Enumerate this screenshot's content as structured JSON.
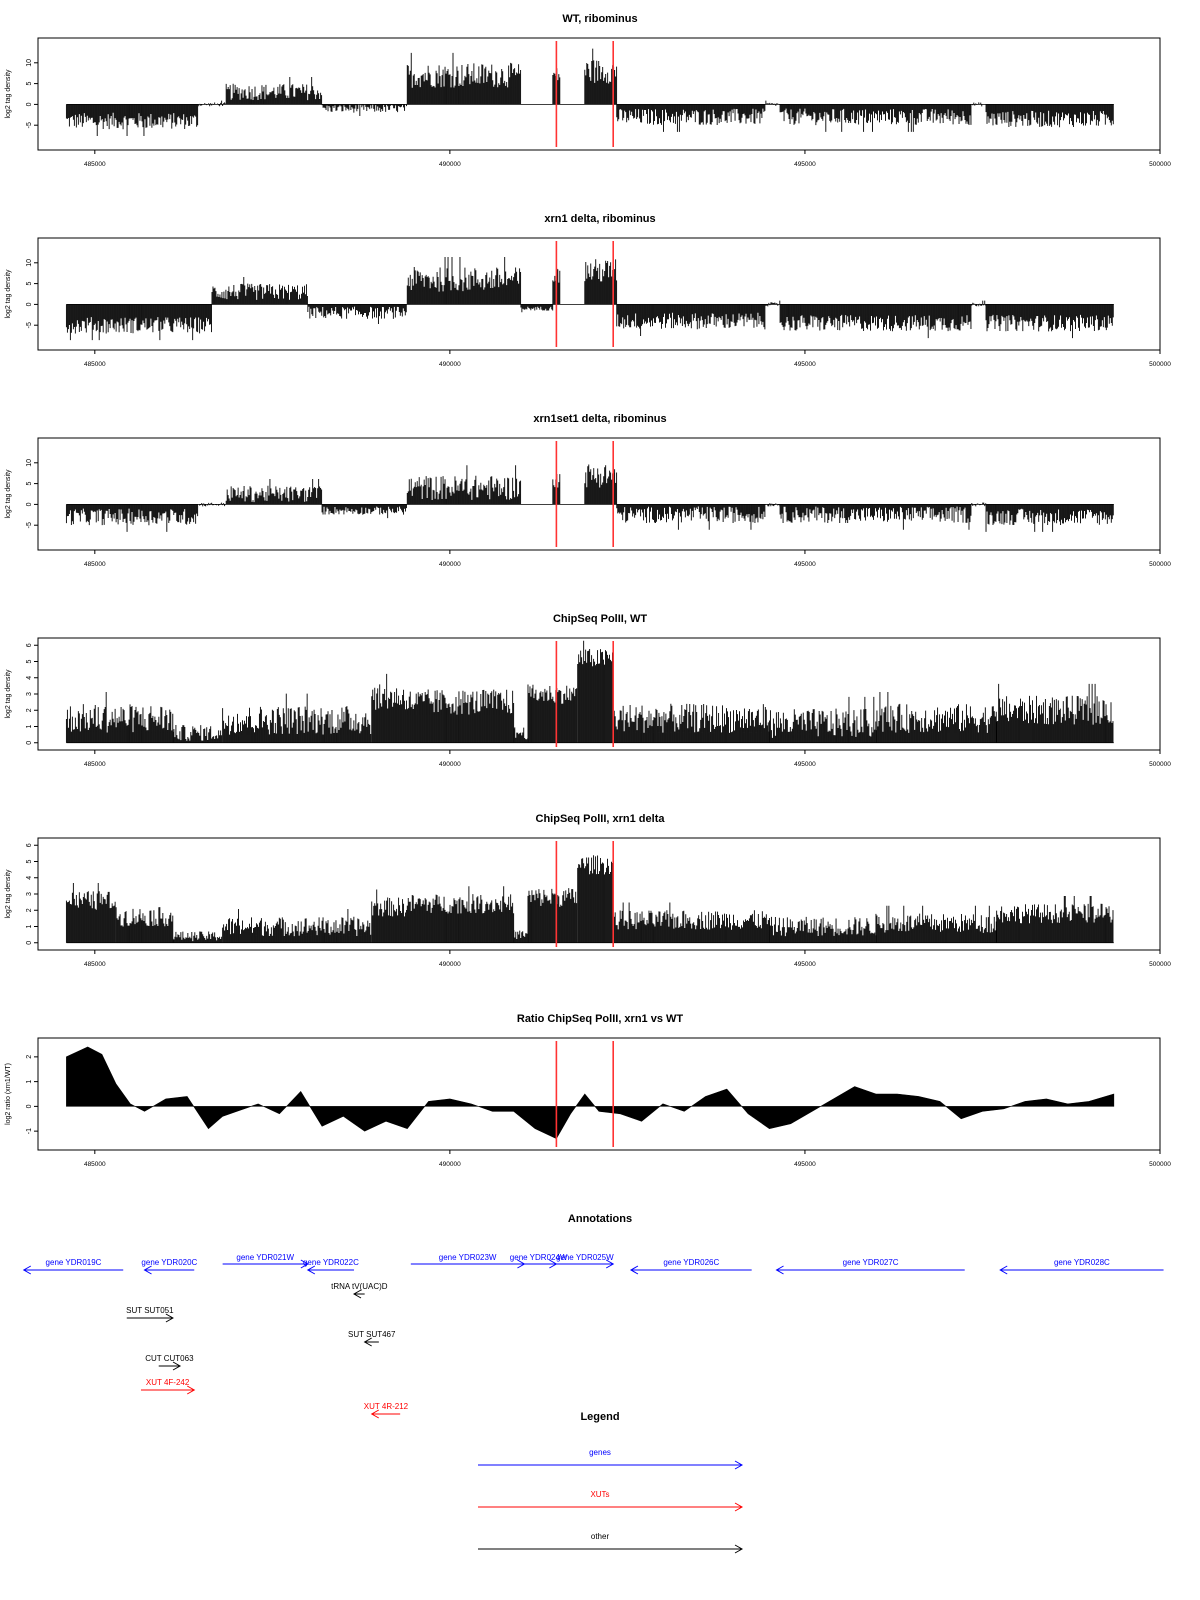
{
  "chart_data": [
    {
      "type": "bar",
      "title": "WT, ribominus",
      "ylabel": "log2 tag density",
      "ylim": [
        -10,
        15
      ],
      "yticks": [
        "-5",
        "0",
        "5",
        "10"
      ],
      "xlim": [
        484200,
        500000
      ],
      "xticks": [
        "485000",
        "490000",
        "495000",
        "500000"
      ],
      "markers": [
        491500,
        492300
      ],
      "segments": [
        {
          "x": [
            484600,
            486450
          ],
          "v": -4,
          "j": 2
        },
        {
          "x": [
            486450,
            486850
          ],
          "v": 0,
          "j": 0.5
        },
        {
          "x": [
            486850,
            488200
          ],
          "v": 3,
          "j": 2
        },
        {
          "x": [
            488200,
            489400
          ],
          "v": -1,
          "j": 1
        },
        {
          "x": [
            489400,
            491000
          ],
          "v": 7,
          "j": 3
        },
        {
          "x": [
            491000,
            491450
          ],
          "v": 0,
          "j": 0
        },
        {
          "x": [
            491450,
            491550
          ],
          "v": 7,
          "j": 2
        },
        {
          "x": [
            491900,
            492350
          ],
          "v": 8,
          "j": 3
        },
        {
          "x": [
            492350,
            494450
          ],
          "v": -3,
          "j": 2
        },
        {
          "x": [
            494450,
            494650
          ],
          "v": 0,
          "j": 0.5
        },
        {
          "x": [
            494650,
            497350
          ],
          "v": -3,
          "j": 2
        },
        {
          "x": [
            497350,
            497550
          ],
          "v": 0,
          "j": 0.5
        },
        {
          "x": [
            497550,
            499350
          ],
          "v": -3.5,
          "j": 2
        }
      ]
    },
    {
      "type": "bar",
      "title": "xrn1 delta, ribominus",
      "ylabel": "log2 tag density",
      "ylim": [
        -10,
        15
      ],
      "yticks": [
        "-5",
        "0",
        "5",
        "10"
      ],
      "xlim": [
        484200,
        500000
      ],
      "xticks": [
        "485000",
        "490000",
        "495000",
        "500000"
      ],
      "markers": [
        491500,
        492300
      ],
      "segments": [
        {
          "x": [
            484600,
            486650
          ],
          "v": -5,
          "j": 2
        },
        {
          "x": [
            486650,
            488000
          ],
          "v": 3,
          "j": 2
        },
        {
          "x": [
            488000,
            489400
          ],
          "v": -2,
          "j": 1.5
        },
        {
          "x": [
            489400,
            491000
          ],
          "v": 6,
          "j": 3
        },
        {
          "x": [
            491000,
            491450
          ],
          "v": -1,
          "j": 0.5
        },
        {
          "x": [
            491450,
            491550
          ],
          "v": 7,
          "j": 2
        },
        {
          "x": [
            491900,
            492350
          ],
          "v": 8,
          "j": 3
        },
        {
          "x": [
            492350,
            494450
          ],
          "v": -4,
          "j": 2
        },
        {
          "x": [
            494450,
            494650
          ],
          "v": 0,
          "j": 0.5
        },
        {
          "x": [
            494650,
            497350
          ],
          "v": -4.5,
          "j": 2
        },
        {
          "x": [
            497350,
            497550
          ],
          "v": 0,
          "j": 0.5
        },
        {
          "x": [
            497550,
            499350
          ],
          "v": -4.5,
          "j": 2
        }
      ]
    },
    {
      "type": "bar",
      "title": "xrn1set1 delta, ribominus",
      "ylabel": "log2 tag density",
      "ylim": [
        -10,
        15
      ],
      "yticks": [
        "-5",
        "0",
        "5",
        "10"
      ],
      "xlim": [
        484200,
        500000
      ],
      "xticks": [
        "485000",
        "490000",
        "495000",
        "500000"
      ],
      "markers": [
        491500,
        492300
      ],
      "segments": [
        {
          "x": [
            484600,
            486450
          ],
          "v": -3,
          "j": 2
        },
        {
          "x": [
            486450,
            486850
          ],
          "v": 0,
          "j": 0.5
        },
        {
          "x": [
            486850,
            488200
          ],
          "v": 2.5,
          "j": 2
        },
        {
          "x": [
            488200,
            489400
          ],
          "v": -1.5,
          "j": 1
        },
        {
          "x": [
            489400,
            491000
          ],
          "v": 4,
          "j": 3
        },
        {
          "x": [
            491000,
            491450
          ],
          "v": 0,
          "j": 0
        },
        {
          "x": [
            491450,
            491550
          ],
          "v": 6,
          "j": 2
        },
        {
          "x": [
            491900,
            492350
          ],
          "v": 7,
          "j": 3
        },
        {
          "x": [
            492350,
            494450
          ],
          "v": -2.5,
          "j": 2
        },
        {
          "x": [
            494450,
            494650
          ],
          "v": 0,
          "j": 0.5
        },
        {
          "x": [
            494650,
            497350
          ],
          "v": -2.5,
          "j": 2
        },
        {
          "x": [
            497350,
            497550
          ],
          "v": 0,
          "j": 0.5
        },
        {
          "x": [
            497550,
            499350
          ],
          "v": -3,
          "j": 2
        }
      ]
    },
    {
      "type": "bar",
      "title": "ChipSeq PolII, WT",
      "ylabel": "log2 tag density",
      "ylim": [
        -0.2,
        6.2
      ],
      "yticks": [
        "0",
        "1",
        "2",
        "3",
        "4",
        "5",
        "6"
      ],
      "xlim": [
        484200,
        500000
      ],
      "xticks": [
        "485000",
        "490000",
        "495000",
        "500000"
      ],
      "markers": [
        491500,
        492300
      ],
      "segments": [
        {
          "x": [
            484600,
            486100
          ],
          "v": 1.5,
          "j": 0.9
        },
        {
          "x": [
            486100,
            486800
          ],
          "v": 0.6,
          "j": 0.5
        },
        {
          "x": [
            486800,
            488900
          ],
          "v": 1.4,
          "j": 0.9
        },
        {
          "x": [
            488900,
            489400
          ],
          "v": 2.8,
          "j": 0.8
        },
        {
          "x": [
            489400,
            490900
          ],
          "v": 2.5,
          "j": 0.8
        },
        {
          "x": [
            490900,
            491100
          ],
          "v": 0.6,
          "j": 0.4
        },
        {
          "x": [
            491100,
            491800
          ],
          "v": 3.0,
          "j": 0.6
        },
        {
          "x": [
            491800,
            492300
          ],
          "v": 5.2,
          "j": 0.6
        },
        {
          "x": [
            492300,
            494500
          ],
          "v": 1.5,
          "j": 0.9
        },
        {
          "x": [
            494500,
            496000
          ],
          "v": 1.2,
          "j": 0.9
        },
        {
          "x": [
            496000,
            497700
          ],
          "v": 1.5,
          "j": 0.9
        },
        {
          "x": [
            497700,
            499350
          ],
          "v": 2.0,
          "j": 0.9
        }
      ]
    },
    {
      "type": "bar",
      "title": "ChipSeq PolII, xrn1 delta",
      "ylabel": "log2 tag density",
      "ylim": [
        -0.2,
        6.2
      ],
      "yticks": [
        "0",
        "1",
        "2",
        "3",
        "4",
        "5",
        "6"
      ],
      "xlim": [
        484200,
        500000
      ],
      "xticks": [
        "485000",
        "490000",
        "495000",
        "500000"
      ],
      "markers": [
        491500,
        492300
      ],
      "segments": [
        {
          "x": [
            484600,
            485300
          ],
          "v": 2.6,
          "j": 0.6
        },
        {
          "x": [
            485300,
            486100
          ],
          "v": 1.6,
          "j": 0.6
        },
        {
          "x": [
            486100,
            486800
          ],
          "v": 0.4,
          "j": 0.3
        },
        {
          "x": [
            486800,
            488900
          ],
          "v": 1.0,
          "j": 0.6
        },
        {
          "x": [
            488900,
            489400
          ],
          "v": 2.2,
          "j": 0.6
        },
        {
          "x": [
            489400,
            490900
          ],
          "v": 2.4,
          "j": 0.6
        },
        {
          "x": [
            490900,
            491100
          ],
          "v": 0.5,
          "j": 0.3
        },
        {
          "x": [
            491100,
            491800
          ],
          "v": 2.8,
          "j": 0.6
        },
        {
          "x": [
            491800,
            492300
          ],
          "v": 4.8,
          "j": 0.6
        },
        {
          "x": [
            492300,
            494500
          ],
          "v": 1.4,
          "j": 0.6
        },
        {
          "x": [
            494500,
            496000
          ],
          "v": 1.0,
          "j": 0.6
        },
        {
          "x": [
            496000,
            497700
          ],
          "v": 1.2,
          "j": 0.6
        },
        {
          "x": [
            497700,
            499350
          ],
          "v": 1.8,
          "j": 0.6
        }
      ]
    },
    {
      "type": "area",
      "title": "Ratio ChipSeq PolII, xrn1 vs WT",
      "ylabel": "log2 ratio (xrn1/WT)",
      "ylim": [
        -1.6,
        2.6
      ],
      "yticks": [
        "-1",
        "0",
        "1",
        "2"
      ],
      "xlim": [
        484200,
        500000
      ],
      "xticks": [
        "485000",
        "490000",
        "495000",
        "500000"
      ],
      "markers": [
        491500,
        492300
      ],
      "points": [
        [
          484600,
          2.0
        ],
        [
          484900,
          2.4
        ],
        [
          485100,
          2.1
        ],
        [
          485300,
          0.9
        ],
        [
          485500,
          0.1
        ],
        [
          485700,
          -0.2
        ],
        [
          486000,
          0.3
        ],
        [
          486300,
          0.4
        ],
        [
          486600,
          -0.9
        ],
        [
          486800,
          -0.4
        ],
        [
          487000,
          -0.2
        ],
        [
          487300,
          0.1
        ],
        [
          487600,
          -0.3
        ],
        [
          487900,
          0.6
        ],
        [
          488200,
          -0.8
        ],
        [
          488500,
          -0.4
        ],
        [
          488800,
          -1.0
        ],
        [
          489100,
          -0.6
        ],
        [
          489400,
          -0.9
        ],
        [
          489700,
          0.2
        ],
        [
          490000,
          0.3
        ],
        [
          490300,
          0.1
        ],
        [
          490600,
          -0.2
        ],
        [
          490900,
          -0.2
        ],
        [
          491200,
          -0.9
        ],
        [
          491500,
          -1.3
        ],
        [
          491700,
          -0.3
        ],
        [
          491900,
          0.5
        ],
        [
          492100,
          -0.2
        ],
        [
          492400,
          -0.3
        ],
        [
          492700,
          -0.6
        ],
        [
          493000,
          0.1
        ],
        [
          493300,
          -0.2
        ],
        [
          493600,
          0.4
        ],
        [
          493900,
          0.7
        ],
        [
          494200,
          -0.3
        ],
        [
          494500,
          -0.9
        ],
        [
          494800,
          -0.7
        ],
        [
          495100,
          -0.2
        ],
        [
          495400,
          0.3
        ],
        [
          495700,
          0.8
        ],
        [
          496000,
          0.5
        ],
        [
          496300,
          0.5
        ],
        [
          496600,
          0.4
        ],
        [
          496900,
          0.2
        ],
        [
          497200,
          -0.5
        ],
        [
          497500,
          -0.2
        ],
        [
          497800,
          -0.1
        ],
        [
          498100,
          0.2
        ],
        [
          498400,
          0.3
        ],
        [
          498700,
          0.1
        ],
        [
          499000,
          0.2
        ],
        [
          499350,
          0.5
        ]
      ]
    }
  ],
  "annotations": {
    "title": "Annotations",
    "items": [
      {
        "label": "gene YDR019C",
        "color": "#0000ff",
        "x1": 484000,
        "x2": 485400,
        "row": 0,
        "dir": -1
      },
      {
        "label": "gene YDR020C",
        "color": "#0000ff",
        "x1": 485700,
        "x2": 486400,
        "row": 0,
        "dir": -1
      },
      {
        "label": "gene YDR021W",
        "color": "#0000ff",
        "x1": 486800,
        "x2": 488000,
        "row": -1,
        "dir": 1
      },
      {
        "label": "gene YDR022C",
        "color": "#0000ff",
        "x1": 488000,
        "x2": 488650,
        "row": 0,
        "dir": -1
      },
      {
        "label": "gene YDR023W",
        "color": "#0000ff",
        "x1": 489450,
        "x2": 491050,
        "row": -1,
        "dir": 1
      },
      {
        "label": "gene YDR024W",
        "color": "#0000ff",
        "x1": 491000,
        "x2": 491500,
        "row": -1,
        "dir": 1
      },
      {
        "label": "gene YDR025W",
        "color": "#0000ff",
        "x1": 491500,
        "x2": 492300,
        "row": -1,
        "dir": 1
      },
      {
        "label": "gene YDR026C",
        "color": "#0000ff",
        "x1": 492550,
        "x2": 494250,
        "row": 0,
        "dir": -1
      },
      {
        "label": "gene YDR027C",
        "color": "#0000ff",
        "x1": 494600,
        "x2": 497250,
        "row": 0,
        "dir": -1
      },
      {
        "label": "gene YDR028C",
        "color": "#0000ff",
        "x1": 497750,
        "x2": 500050,
        "row": 0,
        "dir": -1
      },
      {
        "label": "tRNA tV(UAC)D",
        "color": "#000000",
        "x1": 488650,
        "x2": 488800,
        "row": 1,
        "dir": -1
      },
      {
        "label": "SUT SUT051",
        "color": "#000000",
        "x1": 485450,
        "x2": 486100,
        "row": 2,
        "dir": 1
      },
      {
        "label": "SUT SUT467",
        "color": "#000000",
        "x1": 488800,
        "x2": 489000,
        "row": 3,
        "dir": -1
      },
      {
        "label": "CUT CUT063",
        "color": "#000000",
        "x1": 485900,
        "x2": 486200,
        "row": 4,
        "dir": 1
      },
      {
        "label": "XUT 4F-242",
        "color": "#ff0000",
        "x1": 485650,
        "x2": 486400,
        "row": 5,
        "dir": 1
      },
      {
        "label": "XUT 4R-212",
        "color": "#ff0000",
        "x1": 488900,
        "x2": 489300,
        "row": 6,
        "dir": -1
      }
    ]
  },
  "legend": {
    "title": "Legend",
    "items": [
      {
        "label": "genes",
        "color": "#0000ff"
      },
      {
        "label": "XUTs",
        "color": "#ff0000"
      },
      {
        "label": "other",
        "color": "#000000"
      }
    ]
  }
}
